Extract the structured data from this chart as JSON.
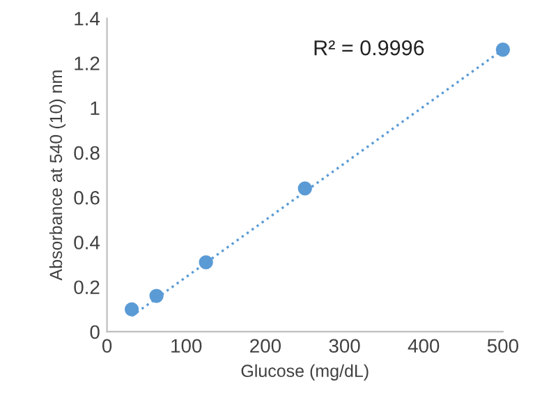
{
  "chart_data": {
    "type": "scatter",
    "xlabel": "Glucose (mg/dL)",
    "ylabel": "Absorbance at 540 (10) nm",
    "series": [
      {
        "color": "#5b9bd5",
        "marker": "circle",
        "x": [
          31.25,
          62.5,
          125,
          250,
          500
        ],
        "values": [
          0.1,
          0.16,
          0.31,
          0.64,
          1.26
        ]
      },
      {
        "type": "line",
        "color": "#5b9bd5",
        "line_style": "dotted",
        "marker": "none",
        "x": [
          31.25,
          500
        ],
        "values": [
          0.07,
          1.26
        ]
      }
    ],
    "annotations": [
      "R² = 0.9996"
    ],
    "xlim": [
      0,
      500
    ],
    "xticks": [
      0,
      100,
      200,
      300,
      400,
      500
    ],
    "ylim": [
      0,
      1.4
    ],
    "yticks": [
      0,
      0.2,
      0.4,
      0.6,
      0.8,
      1,
      1.2,
      1.4
    ],
    "grid": false,
    "legend": false
  }
}
